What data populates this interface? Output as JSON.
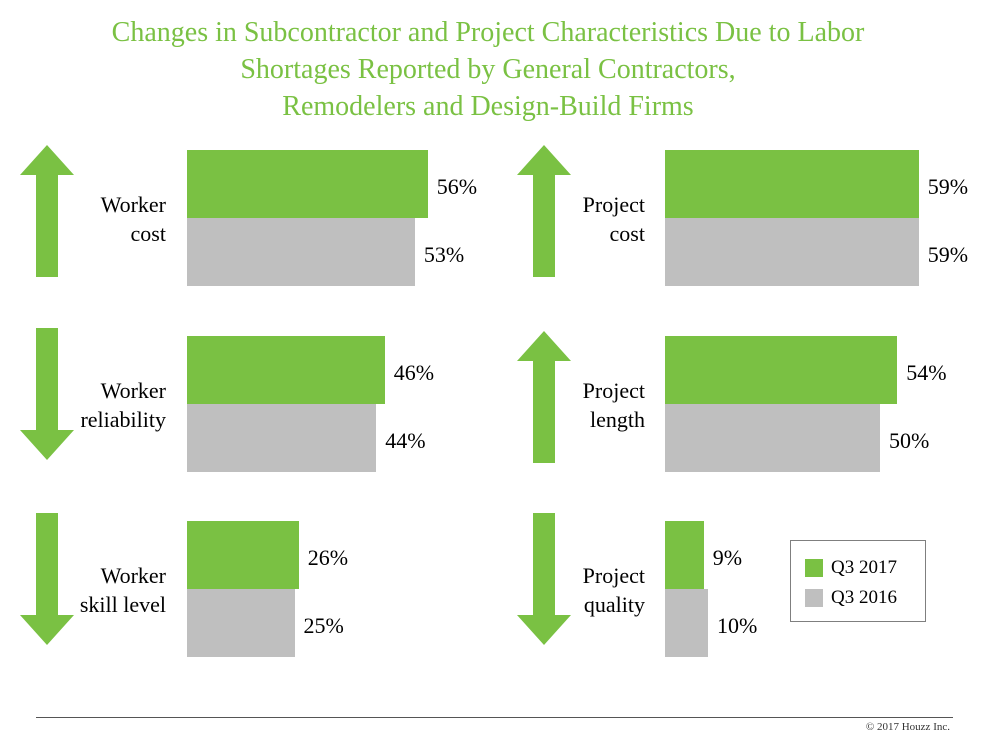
{
  "title": {
    "line1": "Changes in Subcontractor and Project Characteristics Due to Labor",
    "line2": "Shortages Reported by General Contractors,",
    "line3": "Remodelers and Design-Build Firms"
  },
  "colors": {
    "q3_2017": "#7AC143",
    "q3_2016": "#BFBFBF",
    "arrow": "#7AC143"
  },
  "chart_data": {
    "type": "bar",
    "orientation": "horizontal",
    "title": "Changes in Subcontractor and Project Characteristics Due to Labor Shortages Reported by General Contractors, Remodelers and Design-Build Firms",
    "series": [
      {
        "name": "Q3 2017",
        "color": "#7AC143"
      },
      {
        "name": "Q3 2016",
        "color": "#BFBFBF"
      }
    ],
    "xlim": [
      0,
      100
    ],
    "unit": "%",
    "panels": [
      {
        "id": "worker-cost",
        "label1": "Worker",
        "label2": "cost",
        "direction": "up",
        "q3_2017": 56,
        "q3_2016": 53,
        "q3_2017_label": "56%",
        "q3_2016_label": "53%"
      },
      {
        "id": "worker-reliability",
        "label1": "Worker",
        "label2": "reliability",
        "direction": "down",
        "q3_2017": 46,
        "q3_2016": 44,
        "q3_2017_label": "46%",
        "q3_2016_label": "44%"
      },
      {
        "id": "worker-skill",
        "label1": "Worker",
        "label2": "skill level",
        "direction": "down",
        "q3_2017": 26,
        "q3_2016": 25,
        "q3_2017_label": "26%",
        "q3_2016_label": "25%"
      },
      {
        "id": "project-cost",
        "label1": "Project",
        "label2": "cost",
        "direction": "up",
        "q3_2017": 59,
        "q3_2016": 59,
        "q3_2017_label": "59%",
        "q3_2016_label": "59%"
      },
      {
        "id": "project-length",
        "label1": "Project",
        "label2": "length",
        "direction": "up",
        "q3_2017": 54,
        "q3_2016": 50,
        "q3_2017_label": "54%",
        "q3_2016_label": "50%"
      },
      {
        "id": "project-quality",
        "label1": "Project",
        "label2": "quality",
        "direction": "down",
        "q3_2017": 9,
        "q3_2016": 10,
        "q3_2017_label": "9%",
        "q3_2016_label": "10%"
      }
    ]
  },
  "legend": {
    "q3_2017": "Q3 2017",
    "q3_2016": "Q3 2016"
  },
  "footer": {
    "copyright": "© 2017 Houzz Inc."
  }
}
